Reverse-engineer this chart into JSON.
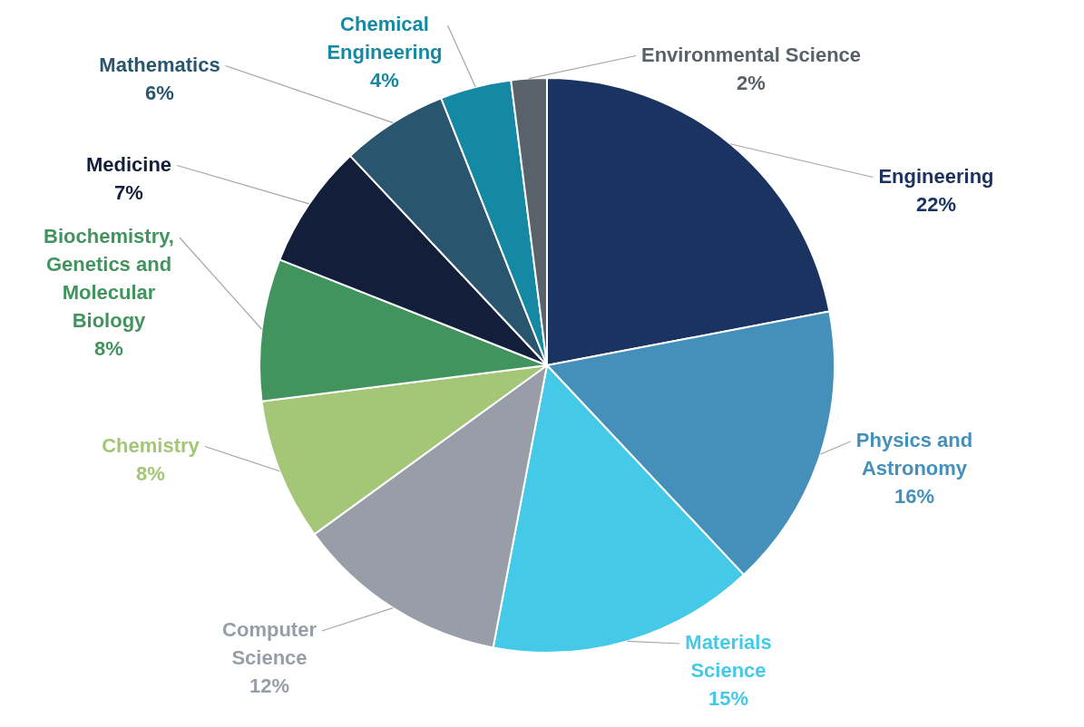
{
  "chart_data": {
    "type": "pie",
    "categories": [
      "Engineering",
      "Physics and Astronomy",
      "Materials Science",
      "Computer Science",
      "Chemistry",
      "Biochemistry, Genetics and Molecular Biology",
      "Medicine",
      "Mathematics",
      "Chemical Engineering",
      "Environmental Science"
    ],
    "values": [
      22,
      16,
      15,
      12,
      8,
      8,
      7,
      6,
      4,
      2
    ],
    "value_labels": [
      "22%",
      "16%",
      "15%",
      "12%",
      "8%",
      "8%",
      "7%",
      "6%",
      "4%",
      "2%"
    ],
    "colors": [
      "#1b3360",
      "#4590bb",
      "#45c9e8",
      "#989ea8",
      "#a3c677",
      "#42945e",
      "#131f3a",
      "#29566e",
      "#1589a3",
      "#59616b"
    ],
    "legend": false
  }
}
